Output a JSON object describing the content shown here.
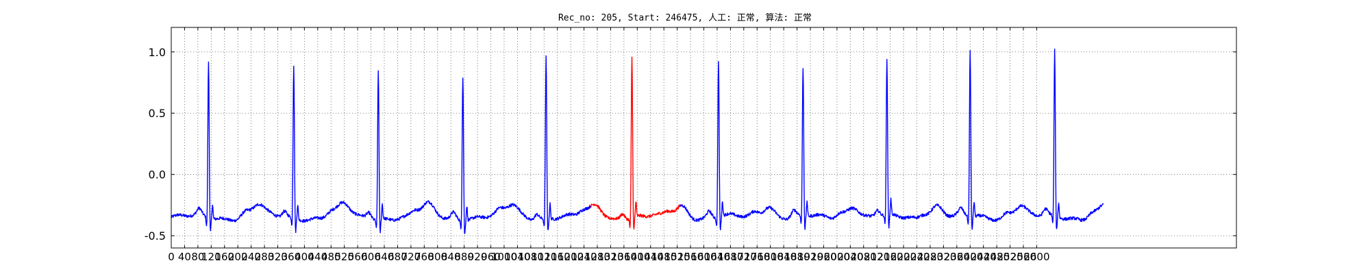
{
  "chart_data": {
    "type": "line",
    "title": "Rec_no: 205, Start: 246475, 人工: 正常, 算法: 正常",
    "xlabel": "",
    "ylabel": "",
    "xlim": [
      0,
      3200
    ],
    "ylim": [
      -0.6,
      1.2
    ],
    "grid": true,
    "x_ticks": [
      0,
      40,
      80,
      120,
      160,
      200,
      240,
      280,
      320,
      360,
      400,
      440,
      480,
      520,
      560,
      600,
      640,
      680,
      720,
      760,
      800,
      840,
      880,
      920,
      960,
      1000,
      1040,
      1080,
      1120,
      1160,
      1200,
      1240,
      1280,
      1320,
      1360,
      1400,
      1440,
      1480,
      1520,
      1560,
      1600,
      1640,
      1680,
      1720,
      1760,
      1800,
      1840,
      1880,
      1920,
      1960,
      2000,
      2040,
      2080,
      2120,
      2160,
      2200,
      2240,
      2280,
      2320,
      2360,
      2400,
      2440,
      2480,
      2520,
      2560,
      2600
    ],
    "y_ticks": [
      -0.5,
      0.0,
      0.5,
      1.0
    ],
    "beats": [
      {
        "r": 112,
        "peak": 0.93,
        "color": "#0000ff"
      },
      {
        "r": 368,
        "peak": 0.9,
        "color": "#0000ff"
      },
      {
        "r": 622,
        "peak": 0.87,
        "color": "#0000ff"
      },
      {
        "r": 876,
        "peak": 0.83,
        "color": "#0000ff"
      },
      {
        "r": 1126,
        "peak": 0.97,
        "color": "#0000ff"
      },
      {
        "r": 1384,
        "peak": 0.97,
        "color": "#ff0000"
      },
      {
        "r": 1644,
        "peak": 0.93,
        "color": "#0000ff"
      },
      {
        "r": 1898,
        "peak": 0.86,
        "color": "#0000ff"
      },
      {
        "r": 2150,
        "peak": 0.91,
        "color": "#0000ff"
      },
      {
        "r": 2400,
        "peak": 1.0,
        "color": "#0000ff"
      },
      {
        "r": 2654,
        "peak": 1.0,
        "color": "#0000ff"
      }
    ],
    "signal_end": 2800,
    "highlight_range": [
      1260,
      1530
    ],
    "series": [
      {
        "color": "#0000ff"
      },
      {
        "color": "#ff0000"
      }
    ]
  }
}
